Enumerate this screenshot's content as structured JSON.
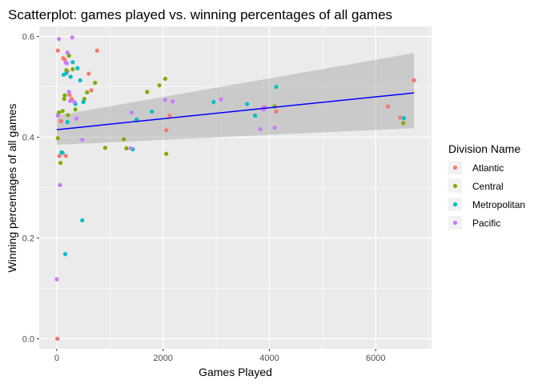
{
  "chart_data": {
    "type": "scatter",
    "title": "Scatterplot: games played vs. winning percentages of all games",
    "xlabel": "Games Played",
    "ylabel": "Winning percentages of all games",
    "xlim": [
      -330,
      7050
    ],
    "ylim": [
      -0.02,
      0.62
    ],
    "x_ticks": [
      0,
      2000,
      4000,
      6000
    ],
    "x_tick_labels": [
      "0",
      "2000",
      "4000",
      "6000"
    ],
    "y_ticks": [
      0.0,
      0.2,
      0.4,
      0.6
    ],
    "y_tick_labels": [
      "0.0",
      "0.2",
      "0.4",
      "0.6"
    ],
    "grid": true,
    "legend": {
      "title": "Division Name",
      "position": "right",
      "entries": [
        "Atlantic",
        "Central",
        "Metropolitan",
        "Pacific"
      ]
    },
    "colors": {
      "Atlantic": "#F8766D",
      "Central": "#7CAE00",
      "Metropolitan": "#00BFC4",
      "Pacific": "#C77CFF",
      "fit_line": "#0000FF",
      "confidence_band": "#999999",
      "panel": "#EBEBEB"
    },
    "series": [
      {
        "name": "Atlantic",
        "x": [
          10,
          20,
          30,
          50,
          80,
          120,
          150,
          170,
          200,
          240,
          280,
          600,
          650,
          760,
          2060,
          2120,
          3920,
          4100,
          4130,
          6230,
          6460,
          6720
        ],
        "y": [
          0.0,
          0.572,
          0.445,
          0.363,
          0.432,
          0.557,
          0.554,
          0.363,
          0.531,
          0.484,
          0.476,
          0.526,
          0.493,
          0.572,
          0.414,
          0.443,
          0.459,
          0.461,
          0.451,
          0.461,
          0.439,
          0.513
        ]
      },
      {
        "name": "Central",
        "x": [
          20,
          40,
          70,
          110,
          140,
          150,
          180,
          210,
          230,
          300,
          350,
          520,
          570,
          720,
          910,
          1260,
          1310,
          1700,
          1930,
          2040,
          2060,
          4100,
          6520
        ],
        "y": [
          0.398,
          0.449,
          0.349,
          0.452,
          0.476,
          0.483,
          0.533,
          0.444,
          0.562,
          0.535,
          0.455,
          0.476,
          0.489,
          0.508,
          0.379,
          0.396,
          0.378,
          0.49,
          0.503,
          0.516,
          0.367,
          0.461,
          0.428
        ]
      },
      {
        "name": "Metropolitan",
        "x": [
          90,
          110,
          130,
          160,
          180,
          200,
          260,
          300,
          350,
          390,
          440,
          480,
          500,
          1430,
          1500,
          1790,
          2950,
          3580,
          3730,
          4130,
          6530
        ],
        "y": [
          0.37,
          0.369,
          0.524,
          0.168,
          0.527,
          0.43,
          0.52,
          0.549,
          0.466,
          0.537,
          0.513,
          0.235,
          0.47,
          0.376,
          0.435,
          0.451,
          0.47,
          0.466,
          0.443,
          0.5,
          0.438
        ]
      },
      {
        "name": "Pacific",
        "x": [
          0,
          20,
          40,
          60,
          170,
          190,
          200,
          230,
          250,
          290,
          330,
          370,
          480,
          1390,
          1410,
          2040,
          2180,
          3090,
          3830,
          3880,
          3890,
          4100
        ],
        "y": [
          0.118,
          0.443,
          0.595,
          0.305,
          0.548,
          0.547,
          0.568,
          0.49,
          0.472,
          0.598,
          0.47,
          0.437,
          0.395,
          0.378,
          0.449,
          0.474,
          0.471,
          0.475,
          0.416,
          0.459,
          0.455,
          0.419
        ]
      }
    ],
    "trend_line": {
      "x": [
        0,
        6720
      ],
      "y": [
        0.415,
        0.488
      ],
      "ci_lower": [
        0.385,
        0.418
      ],
      "ci_upper": [
        0.443,
        0.567
      ]
    }
  }
}
